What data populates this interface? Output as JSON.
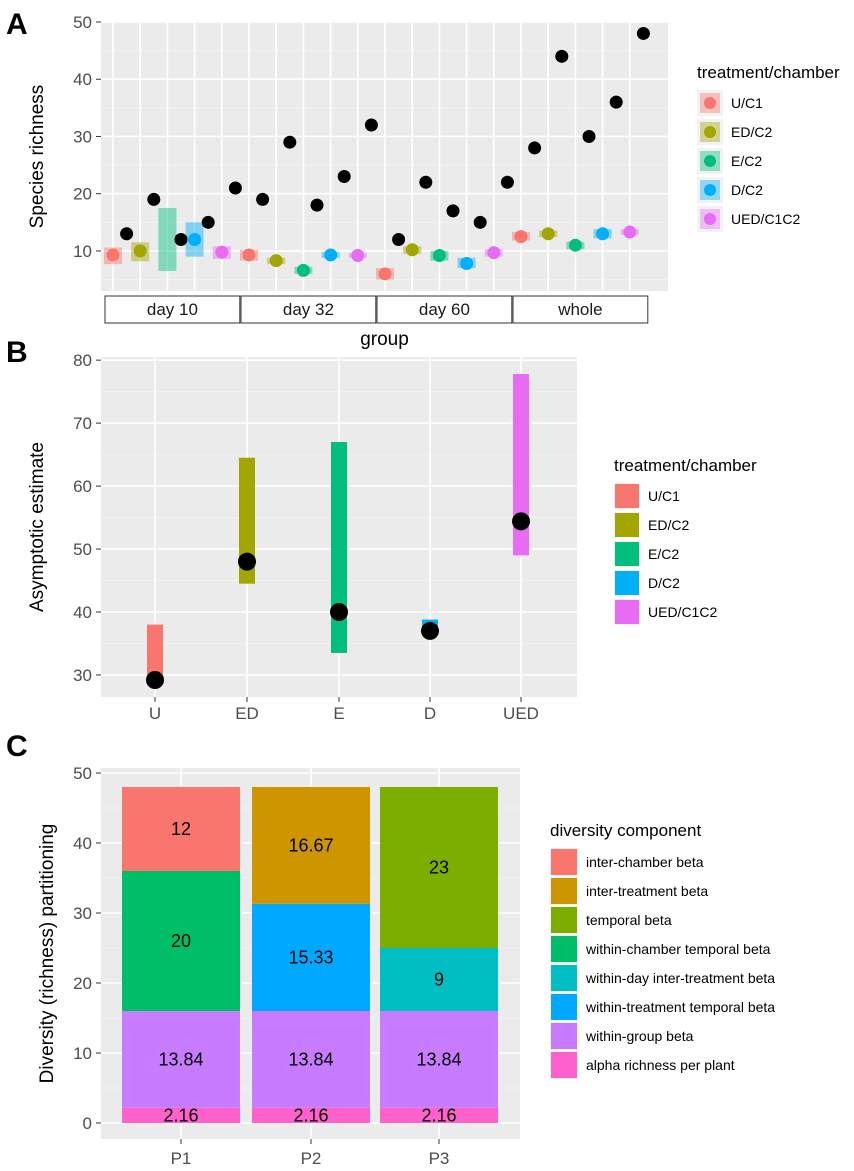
{
  "colors": {
    "U/C1": "#f8766d",
    "ED/C2": "#a3a500",
    "E/C2": "#00bf7d",
    "D/C2": "#00b0f6",
    "UED/C1C2": "#e76bf3",
    "inter-chamber beta": "#f8766d",
    "inter-treatment beta": "#cd9600",
    "temporal beta": "#7cae00",
    "within-chamber temporal beta": "#00be67",
    "within-day inter-treatment beta": "#00bfc4",
    "within-treatment temporal beta": "#00a9ff",
    "within-group beta": "#c77cff",
    "alpha richness per plant": "#ff61cc"
  },
  "chart_data": [
    {
      "panel": "A",
      "type": "scatter",
      "ylabel": "Species richness",
      "xlabel": "group",
      "ylim": [
        3,
        50
      ],
      "yticks": [
        10,
        20,
        30,
        40,
        50
      ],
      "facets": [
        "day 10",
        "day 32",
        "day 60",
        "whole"
      ],
      "legend_title": "treatment/chamber",
      "legend": [
        "U/C1",
        "ED/C2",
        "E/C2",
        "D/C2",
        "UED/C1C2"
      ],
      "groups": [
        {
          "facet": "day 10",
          "treatment": "U/C1",
          "mean": 9.3,
          "lo": 7.7,
          "hi": 10.6,
          "total": 13
        },
        {
          "facet": "day 10",
          "treatment": "ED/C2",
          "mean": 10.0,
          "lo": 8.2,
          "hi": 11.5,
          "total": 19
        },
        {
          "facet": "day 10",
          "treatment": "E/C2",
          "mean": null,
          "lo": 6.5,
          "hi": 17.5,
          "total": 12
        },
        {
          "facet": "day 10",
          "treatment": "D/C2",
          "mean": 12.0,
          "lo": 9.0,
          "hi": 15.0,
          "total": 15
        },
        {
          "facet": "day 10",
          "treatment": "UED/C1C2",
          "mean": 9.8,
          "lo": 8.6,
          "hi": 10.8,
          "total": 21
        },
        {
          "facet": "day 32",
          "treatment": "U/C1",
          "mean": 9.3,
          "lo": 8.3,
          "hi": 10.2,
          "total": 19
        },
        {
          "facet": "day 32",
          "treatment": "ED/C2",
          "mean": 8.3,
          "lo": 7.7,
          "hi": 8.8,
          "total": 29
        },
        {
          "facet": "day 32",
          "treatment": "E/C2",
          "mean": 6.6,
          "lo": 6.0,
          "hi": 7.2,
          "total": 18
        },
        {
          "facet": "day 32",
          "treatment": "D/C2",
          "mean": 9.3,
          "lo": 8.8,
          "hi": 9.8,
          "total": 23
        },
        {
          "facet": "day 32",
          "treatment": "UED/C1C2",
          "mean": 9.2,
          "lo": 8.8,
          "hi": 9.6,
          "total": 32
        },
        {
          "facet": "day 60",
          "treatment": "U/C1",
          "mean": 6.0,
          "lo": 5.0,
          "hi": 7.0,
          "total": 12
        },
        {
          "facet": "day 60",
          "treatment": "ED/C2",
          "mean": 10.2,
          "lo": 9.5,
          "hi": 10.8,
          "total": 22
        },
        {
          "facet": "day 60",
          "treatment": "E/C2",
          "mean": 9.2,
          "lo": 8.3,
          "hi": 10.0,
          "total": 17
        },
        {
          "facet": "day 60",
          "treatment": "D/C2",
          "mean": 7.8,
          "lo": 7.0,
          "hi": 8.8,
          "total": 15
        },
        {
          "facet": "day 60",
          "treatment": "UED/C1C2",
          "mean": 9.7,
          "lo": 9.0,
          "hi": 10.3,
          "total": 22
        },
        {
          "facet": "whole",
          "treatment": "U/C1",
          "mean": 12.5,
          "lo": 11.8,
          "hi": 13.3,
          "total": 28
        },
        {
          "facet": "whole",
          "treatment": "ED/C2",
          "mean": 13.0,
          "lo": 12.4,
          "hi": 13.6,
          "total": 44
        },
        {
          "facet": "whole",
          "treatment": "E/C2",
          "mean": 11.0,
          "lo": 10.3,
          "hi": 11.6,
          "total": 30
        },
        {
          "facet": "whole",
          "treatment": "D/C2",
          "mean": 13.0,
          "lo": 12.2,
          "hi": 13.8,
          "total": 36
        },
        {
          "facet": "whole",
          "treatment": "UED/C1C2",
          "mean": 13.3,
          "lo": 12.8,
          "hi": 13.8,
          "total": 48
        }
      ]
    },
    {
      "panel": "B",
      "type": "scatter",
      "ylabel": "Asymptotic estimate",
      "xlabel": "",
      "ylim": [
        26.5,
        80.5
      ],
      "yticks": [
        30,
        40,
        50,
        60,
        70,
        80
      ],
      "categories": [
        "U",
        "ED",
        "E",
        "D",
        "UED"
      ],
      "treatments": [
        "U/C1",
        "ED/C2",
        "E/C2",
        "D/C2",
        "UED/C1C2"
      ],
      "estimates": [
        29.2,
        48.0,
        40.0,
        37.0,
        54.4
      ],
      "lo": [
        29.2,
        44.5,
        33.5,
        37.0,
        49.0
      ],
      "hi": [
        38.0,
        64.5,
        67.0,
        38.8,
        77.8
      ],
      "legend_title": "treatment/chamber",
      "legend": [
        "U/C1",
        "ED/C2",
        "E/C2",
        "D/C2",
        "UED/C1C2"
      ]
    },
    {
      "panel": "C",
      "type": "bar",
      "stacked": true,
      "ylabel": "Diversity (richness) partitioning",
      "xlabel": "",
      "ylim": [
        0,
        50
      ],
      "yticks": [
        0,
        10,
        20,
        30,
        40,
        50
      ],
      "categories": [
        "P1",
        "P2",
        "P3"
      ],
      "stacks": [
        [
          {
            "component": "alpha richness per plant",
            "value": 2.16,
            "label": "2.16"
          },
          {
            "component": "within-group beta",
            "value": 13.84,
            "label": "13.84"
          },
          {
            "component": "within-chamber temporal beta",
            "value": 20,
            "label": "20"
          },
          {
            "component": "inter-chamber beta",
            "value": 12,
            "label": "12"
          }
        ],
        [
          {
            "component": "alpha richness per plant",
            "value": 2.16,
            "label": "2.16"
          },
          {
            "component": "within-group beta",
            "value": 13.84,
            "label": "13.84"
          },
          {
            "component": "within-treatment temporal beta",
            "value": 15.33,
            "label": "15.33"
          },
          {
            "component": "inter-treatment beta",
            "value": 16.67,
            "label": "16.67"
          }
        ],
        [
          {
            "component": "alpha richness per plant",
            "value": 2.16,
            "label": "2.16"
          },
          {
            "component": "within-group beta",
            "value": 13.84,
            "label": "13.84"
          },
          {
            "component": "within-day inter-treatment beta",
            "value": 9,
            "label": "9"
          },
          {
            "component": "temporal beta",
            "value": 23,
            "label": "23"
          }
        ]
      ],
      "legend_title": "diversity component",
      "legend": [
        "inter-chamber beta",
        "inter-treatment beta",
        "temporal beta",
        "within-chamber temporal beta",
        "within-day inter-treatment beta",
        "within-treatment temporal beta",
        "within-group beta",
        "alpha richness per plant"
      ]
    }
  ]
}
